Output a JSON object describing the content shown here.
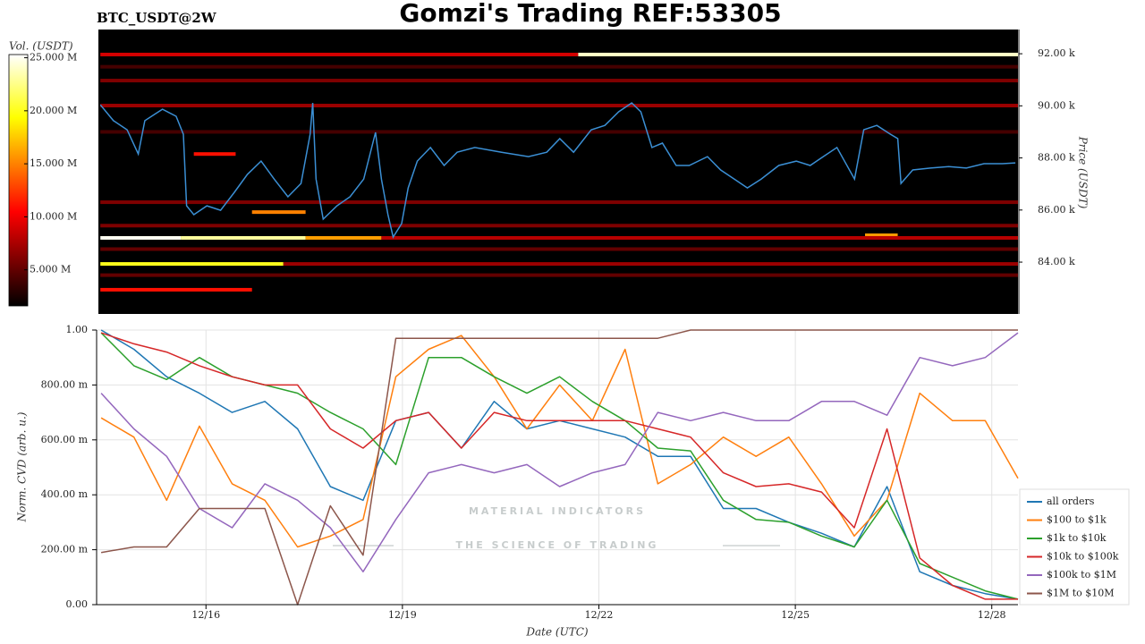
{
  "chart_data": [
    {
      "type": "heatmap",
      "title": "Gomzi's Trading REF:53305",
      "subtitle": "BTC_USDT@2W",
      "y_label": "Price (USDT)",
      "colorbar_label": "Vol. (USDT)",
      "xlim": [
        14.33,
        28.4
      ],
      "ylim": [
        82010,
        92930
      ],
      "yticks": [
        {
          "value": 84000,
          "label": "84.00 k"
        },
        {
          "value": 86000,
          "label": "86.00 k"
        },
        {
          "value": 88000,
          "label": "88.00 k"
        },
        {
          "value": 90000,
          "label": "90.00 k"
        },
        {
          "value": 92000,
          "label": "92.00 k"
        }
      ],
      "clim": [
        1600000,
        25300000
      ],
      "cticks": [
        {
          "value": 5000000,
          "label": "5.000 M"
        },
        {
          "value": 10000000,
          "label": "10.000 M"
        },
        {
          "value": 15000000,
          "label": "15.000 M"
        },
        {
          "value": 20000000,
          "label": "20.000 M"
        },
        {
          "value": 25000000,
          "label": "25.000 M"
        }
      ],
      "colormap": "hot",
      "levels": [
        {
          "price": 91970,
          "start": 21.67,
          "end": 28.4,
          "volume": 24000000
        },
        {
          "price": 91970,
          "start": 14.36,
          "end": 21.67,
          "volume": 9000000
        },
        {
          "price": 91500,
          "start": 14.36,
          "end": 28.4,
          "volume": 4000000
        },
        {
          "price": 90970,
          "start": 14.36,
          "end": 28.4,
          "volume": 6000000
        },
        {
          "price": 90010,
          "start": 14.36,
          "end": 28.4,
          "volume": 7000000
        },
        {
          "price": 89000,
          "start": 14.36,
          "end": 28.4,
          "volume": 4000000
        },
        {
          "price": 88150,
          "start": 15.79,
          "end": 16.43,
          "volume": 11000000
        },
        {
          "price": 86300,
          "start": 14.36,
          "end": 28.4,
          "volume": 6000000
        },
        {
          "price": 85920,
          "start": 16.68,
          "end": 17.5,
          "volume": 15000000
        },
        {
          "price": 85400,
          "start": 14.36,
          "end": 28.4,
          "volume": 6000000
        },
        {
          "price": 85030,
          "start": 26.06,
          "end": 26.56,
          "volume": 16000000
        },
        {
          "price": 84930,
          "start": 14.36,
          "end": 15.59,
          "volume": 25000000
        },
        {
          "price": 84930,
          "start": 15.59,
          "end": 17.5,
          "volume": 23000000
        },
        {
          "price": 84930,
          "start": 17.5,
          "end": 18.66,
          "volume": 16000000
        },
        {
          "price": 84930,
          "start": 18.66,
          "end": 28.4,
          "volume": 8000000
        },
        {
          "price": 84500,
          "start": 14.36,
          "end": 28.4,
          "volume": 5000000
        },
        {
          "price": 83930,
          "start": 14.36,
          "end": 17.16,
          "volume": 20000000
        },
        {
          "price": 83930,
          "start": 17.16,
          "end": 28.4,
          "volume": 7000000
        },
        {
          "price": 83500,
          "start": 14.36,
          "end": 28.4,
          "volume": 5000000
        },
        {
          "price": 82940,
          "start": 14.36,
          "end": 16.68,
          "volume": 11000000
        }
      ],
      "line_color": "#3b8fd4",
      "x": [
        14.36,
        14.56,
        14.77,
        14.94,
        15.04,
        15.31,
        15.52,
        15.63,
        15.68,
        15.79,
        15.99,
        16.2,
        16.41,
        16.61,
        16.82,
        17.02,
        17.23,
        17.43,
        17.57,
        17.61,
        17.66,
        17.77,
        17.98,
        18.18,
        18.39,
        18.57,
        18.66,
        18.76,
        18.84,
        18.97,
        19.07,
        19.21,
        19.41,
        19.62,
        19.82,
        20.09,
        20.5,
        20.91,
        21.19,
        21.39,
        21.6,
        21.87,
        22.08,
        22.29,
        22.49,
        22.63,
        22.8,
        22.96,
        23.17,
        23.37,
        23.65,
        23.85,
        24.06,
        24.26,
        24.47,
        24.74,
        25.01,
        25.22,
        25.42,
        25.63,
        25.9,
        26.04,
        26.24,
        26.45,
        26.56,
        26.61,
        26.79,
        27.06,
        27.34,
        27.61,
        27.88,
        28.16,
        28.36
      ],
      "values": [
        90040,
        89430,
        89080,
        88150,
        89430,
        89870,
        89600,
        88910,
        86160,
        85820,
        86160,
        85990,
        86680,
        87370,
        87880,
        87190,
        86510,
        87020,
        88910,
        90110,
        87190,
        85650,
        86160,
        86510,
        87190,
        88980,
        87190,
        85820,
        84960,
        85480,
        86850,
        87880,
        88400,
        87710,
        88220,
        88400,
        88220,
        88050,
        88220,
        88740,
        88220,
        89080,
        89250,
        89770,
        90110,
        89770,
        88400,
        88570,
        87710,
        87710,
        88050,
        87540,
        87190,
        86850,
        87190,
        87710,
        87880,
        87710,
        88050,
        88400,
        87190,
        89080,
        89250,
        88910,
        88740,
        87020,
        87540,
        87610,
        87670,
        87610,
        87780,
        87780,
        87810
      ]
    },
    {
      "type": "line",
      "y_label": "Norm. CVD (arb. u.)",
      "x_label": "Date (UTC)",
      "xlim": [
        14.33,
        28.4
      ],
      "xticks": [
        {
          "value": 16,
          "label": "12/16"
        },
        {
          "value": 19,
          "label": "12/19"
        },
        {
          "value": 22,
          "label": "12/22"
        },
        {
          "value": 25,
          "label": "12/25"
        },
        {
          "value": 28,
          "label": "12/28"
        }
      ],
      "ylim": [
        0,
        1
      ],
      "yticks": [
        {
          "value": 0,
          "label": "0.00"
        },
        {
          "value": 0.2,
          "label": "200.00 m"
        },
        {
          "value": 0.4,
          "label": "400.00 m"
        },
        {
          "value": 0.6,
          "label": "600.00 m"
        },
        {
          "value": 0.8,
          "label": "800.00 m"
        },
        {
          "value": 1,
          "label": "1.00"
        }
      ],
      "grid": true,
      "legend": "lower right",
      "watermark": [
        "MATERIAL INDICATORS",
        "THE SCIENCE OF TRADING"
      ],
      "x": [
        14.4,
        14.9,
        15.4,
        15.9,
        16.4,
        16.9,
        17.4,
        17.9,
        18.4,
        18.9,
        19.4,
        19.9,
        20.4,
        20.9,
        21.4,
        21.9,
        22.4,
        22.9,
        23.4,
        23.9,
        24.4,
        24.9,
        25.4,
        25.9,
        26.4,
        26.9,
        27.4,
        27.9,
        28.4
      ],
      "series": [
        {
          "name": "all orders",
          "color": "#1f77b4",
          "values": [
            1.0,
            0.93,
            0.83,
            0.77,
            0.7,
            0.74,
            0.64,
            0.43,
            0.38,
            0.67,
            0.7,
            0.57,
            0.74,
            0.64,
            0.67,
            0.64,
            0.61,
            0.54,
            0.54,
            0.35,
            0.35,
            0.3,
            0.26,
            0.21,
            0.43,
            0.12,
            0.07,
            0.04,
            0.02
          ]
        },
        {
          "name": "$100 to $1k",
          "color": "#ff7f0e",
          "values": [
            0.68,
            0.61,
            0.38,
            0.65,
            0.44,
            0.38,
            0.21,
            0.25,
            0.31,
            0.83,
            0.93,
            0.98,
            0.83,
            0.64,
            0.8,
            0.67,
            0.93,
            0.44,
            0.51,
            0.61,
            0.54,
            0.61,
            0.44,
            0.25,
            0.38,
            0.77,
            0.67,
            0.67,
            0.46
          ]
        },
        {
          "name": "$1k to $10k",
          "color": "#2ca02c",
          "values": [
            0.99,
            0.87,
            0.82,
            0.9,
            0.83,
            0.8,
            0.77,
            0.7,
            0.64,
            0.51,
            0.9,
            0.9,
            0.83,
            0.77,
            0.83,
            0.74,
            0.67,
            0.57,
            0.56,
            0.38,
            0.31,
            0.3,
            0.25,
            0.21,
            0.38,
            0.15,
            0.1,
            0.05,
            0.02
          ]
        },
        {
          "name": "$10k to $100k",
          "color": "#d62728",
          "values": [
            0.99,
            0.95,
            0.92,
            0.87,
            0.83,
            0.8,
            0.8,
            0.64,
            0.57,
            0.67,
            0.7,
            0.57,
            0.7,
            0.67,
            0.67,
            0.67,
            0.67,
            0.64,
            0.61,
            0.48,
            0.43,
            0.44,
            0.41,
            0.28,
            0.64,
            0.17,
            0.07,
            0.02,
            0.02
          ]
        },
        {
          "name": "$100k to $1M",
          "color": "#9467bd",
          "values": [
            0.77,
            0.64,
            0.54,
            0.35,
            0.28,
            0.44,
            0.38,
            0.28,
            0.12,
            0.31,
            0.48,
            0.51,
            0.48,
            0.51,
            0.43,
            0.48,
            0.51,
            0.7,
            0.67,
            0.7,
            0.67,
            0.67,
            0.74,
            0.74,
            0.69,
            0.9,
            0.87,
            0.9,
            0.99
          ]
        },
        {
          "name": "$1M to $10M",
          "color": "#8c564b",
          "values": [
            0.19,
            0.21,
            0.21,
            0.35,
            0.35,
            0.35,
            0.0,
            0.36,
            0.18,
            0.97,
            0.97,
            0.97,
            0.97,
            0.97,
            0.97,
            0.97,
            0.97,
            0.97,
            1.0,
            1.0,
            1.0,
            1.0,
            1.0,
            1.0,
            1.0,
            1.0,
            1.0,
            1.0,
            1.0
          ]
        }
      ]
    }
  ]
}
